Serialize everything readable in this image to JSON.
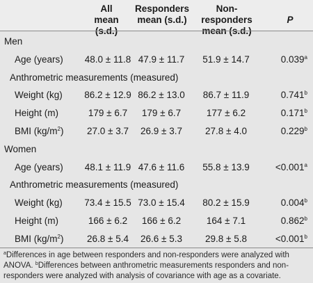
{
  "headers": {
    "all": [
      "All",
      "mean (s.d.)"
    ],
    "responders": [
      "Responders",
      "mean (s.d.)"
    ],
    "nonresponders": [
      "Non-responders",
      "mean (s.d.)"
    ],
    "p": "P"
  },
  "rows": [
    {
      "label": "Men",
      "type": "section"
    },
    {
      "label": "Age (years)",
      "all": "48.0 ± 11.8",
      "resp": "47.9 ± 11.7",
      "nonresp": "51.9 ± 14.7",
      "p": "0.039",
      "sup": "a"
    },
    {
      "label": "Anthrometric measurements (measured)",
      "type": "subsection"
    },
    {
      "label": "Weight (kg)",
      "all": "86.2 ± 12.9",
      "resp": "86.2 ± 13.0",
      "nonresp": "86.7 ± 11.9",
      "p": "0.741",
      "sup": "b"
    },
    {
      "label": "Height (m)",
      "all": "179 ± 6.7",
      "resp": "179 ± 6.7",
      "nonresp": "177 ± 6.2",
      "p": "0.171",
      "sup": "b"
    },
    {
      "label": "BMI (kg/m",
      "label_sup": "2",
      "label_end": ")",
      "all": "27.0 ± 3.7",
      "resp": "26.9 ± 3.7",
      "nonresp": "27.8 ± 4.0",
      "p": "0.229",
      "sup": "b"
    },
    {
      "label": "Women",
      "type": "section"
    },
    {
      "label": "Age (years)",
      "all": "48.1 ± 11.9",
      "resp": "47.6 ± 11.6",
      "nonresp": "55.8 ± 13.9",
      "p": "<0.001",
      "sup": "a"
    },
    {
      "label": "Anthrometric measurements (measured)",
      "type": "subsection"
    },
    {
      "label": "Weight (kg)",
      "all": "73.4 ± 15.5",
      "resp": "73.0 ± 15.4",
      "nonresp": "80.2 ± 15.9",
      "p": "0.004",
      "sup": "b"
    },
    {
      "label": "Height (m)",
      "all": "166 ± 6.2",
      "resp": "166 ± 6.2",
      "nonresp": "164 ± 7.1",
      "p": "0.862",
      "sup": "b"
    },
    {
      "label": "BMI (kg/m",
      "label_sup": "2",
      "label_end": ")",
      "all": "26.8 ± 5.4",
      "resp": "26.6 ± 5.3",
      "nonresp": "29.8 ± 5.8",
      "p": "<0.001",
      "sup": "b"
    }
  ],
  "footnote": {
    "a_marker": "a",
    "a_text": "Differences in age between responders and non-responders were analyzed with ANOVA.",
    "b_marker": "b",
    "b_text": "Differences between anthrometric measurements responders and non-responders were analyzed with analysis of covariance with age as a covariate."
  }
}
